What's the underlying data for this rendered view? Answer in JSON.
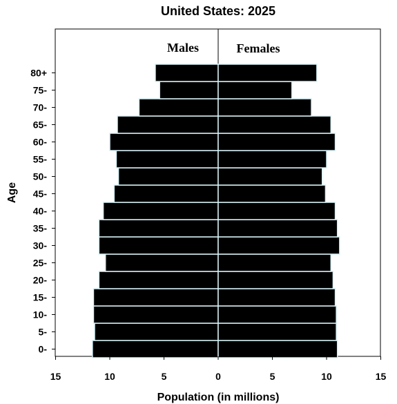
{
  "chart_data": {
    "type": "bar",
    "orientation": "horizontal-population-pyramid",
    "title": "United States: 2025",
    "xlabel": "Population (in millions)",
    "ylabel": "Age",
    "categories": [
      "0-",
      "5-",
      "10-",
      "15-",
      "20-",
      "25-",
      "30-",
      "35-",
      "40-",
      "45-",
      "50-",
      "55-",
      "60-",
      "65-",
      "70-",
      "75-",
      "80+"
    ],
    "series": [
      {
        "name": "Males",
        "values": [
          11.6,
          11.4,
          11.5,
          11.5,
          11.0,
          10.4,
          11.0,
          11.0,
          10.6,
          9.6,
          9.2,
          9.4,
          10.0,
          9.3,
          7.3,
          5.4,
          5.8
        ]
      },
      {
        "name": "Females",
        "values": [
          11.0,
          10.9,
          10.9,
          10.8,
          10.6,
          10.4,
          11.2,
          11.0,
          10.8,
          9.9,
          9.6,
          10.0,
          10.8,
          10.4,
          8.6,
          6.8,
          9.1
        ]
      }
    ],
    "xticks": [
      "15",
      "10",
      "5",
      "0",
      "5",
      "10",
      "15"
    ],
    "xlim": [
      -15,
      15
    ],
    "grid": false,
    "legend": "none",
    "bar_color": "#000000",
    "bar_edge_color": "#d9f2f7"
  }
}
